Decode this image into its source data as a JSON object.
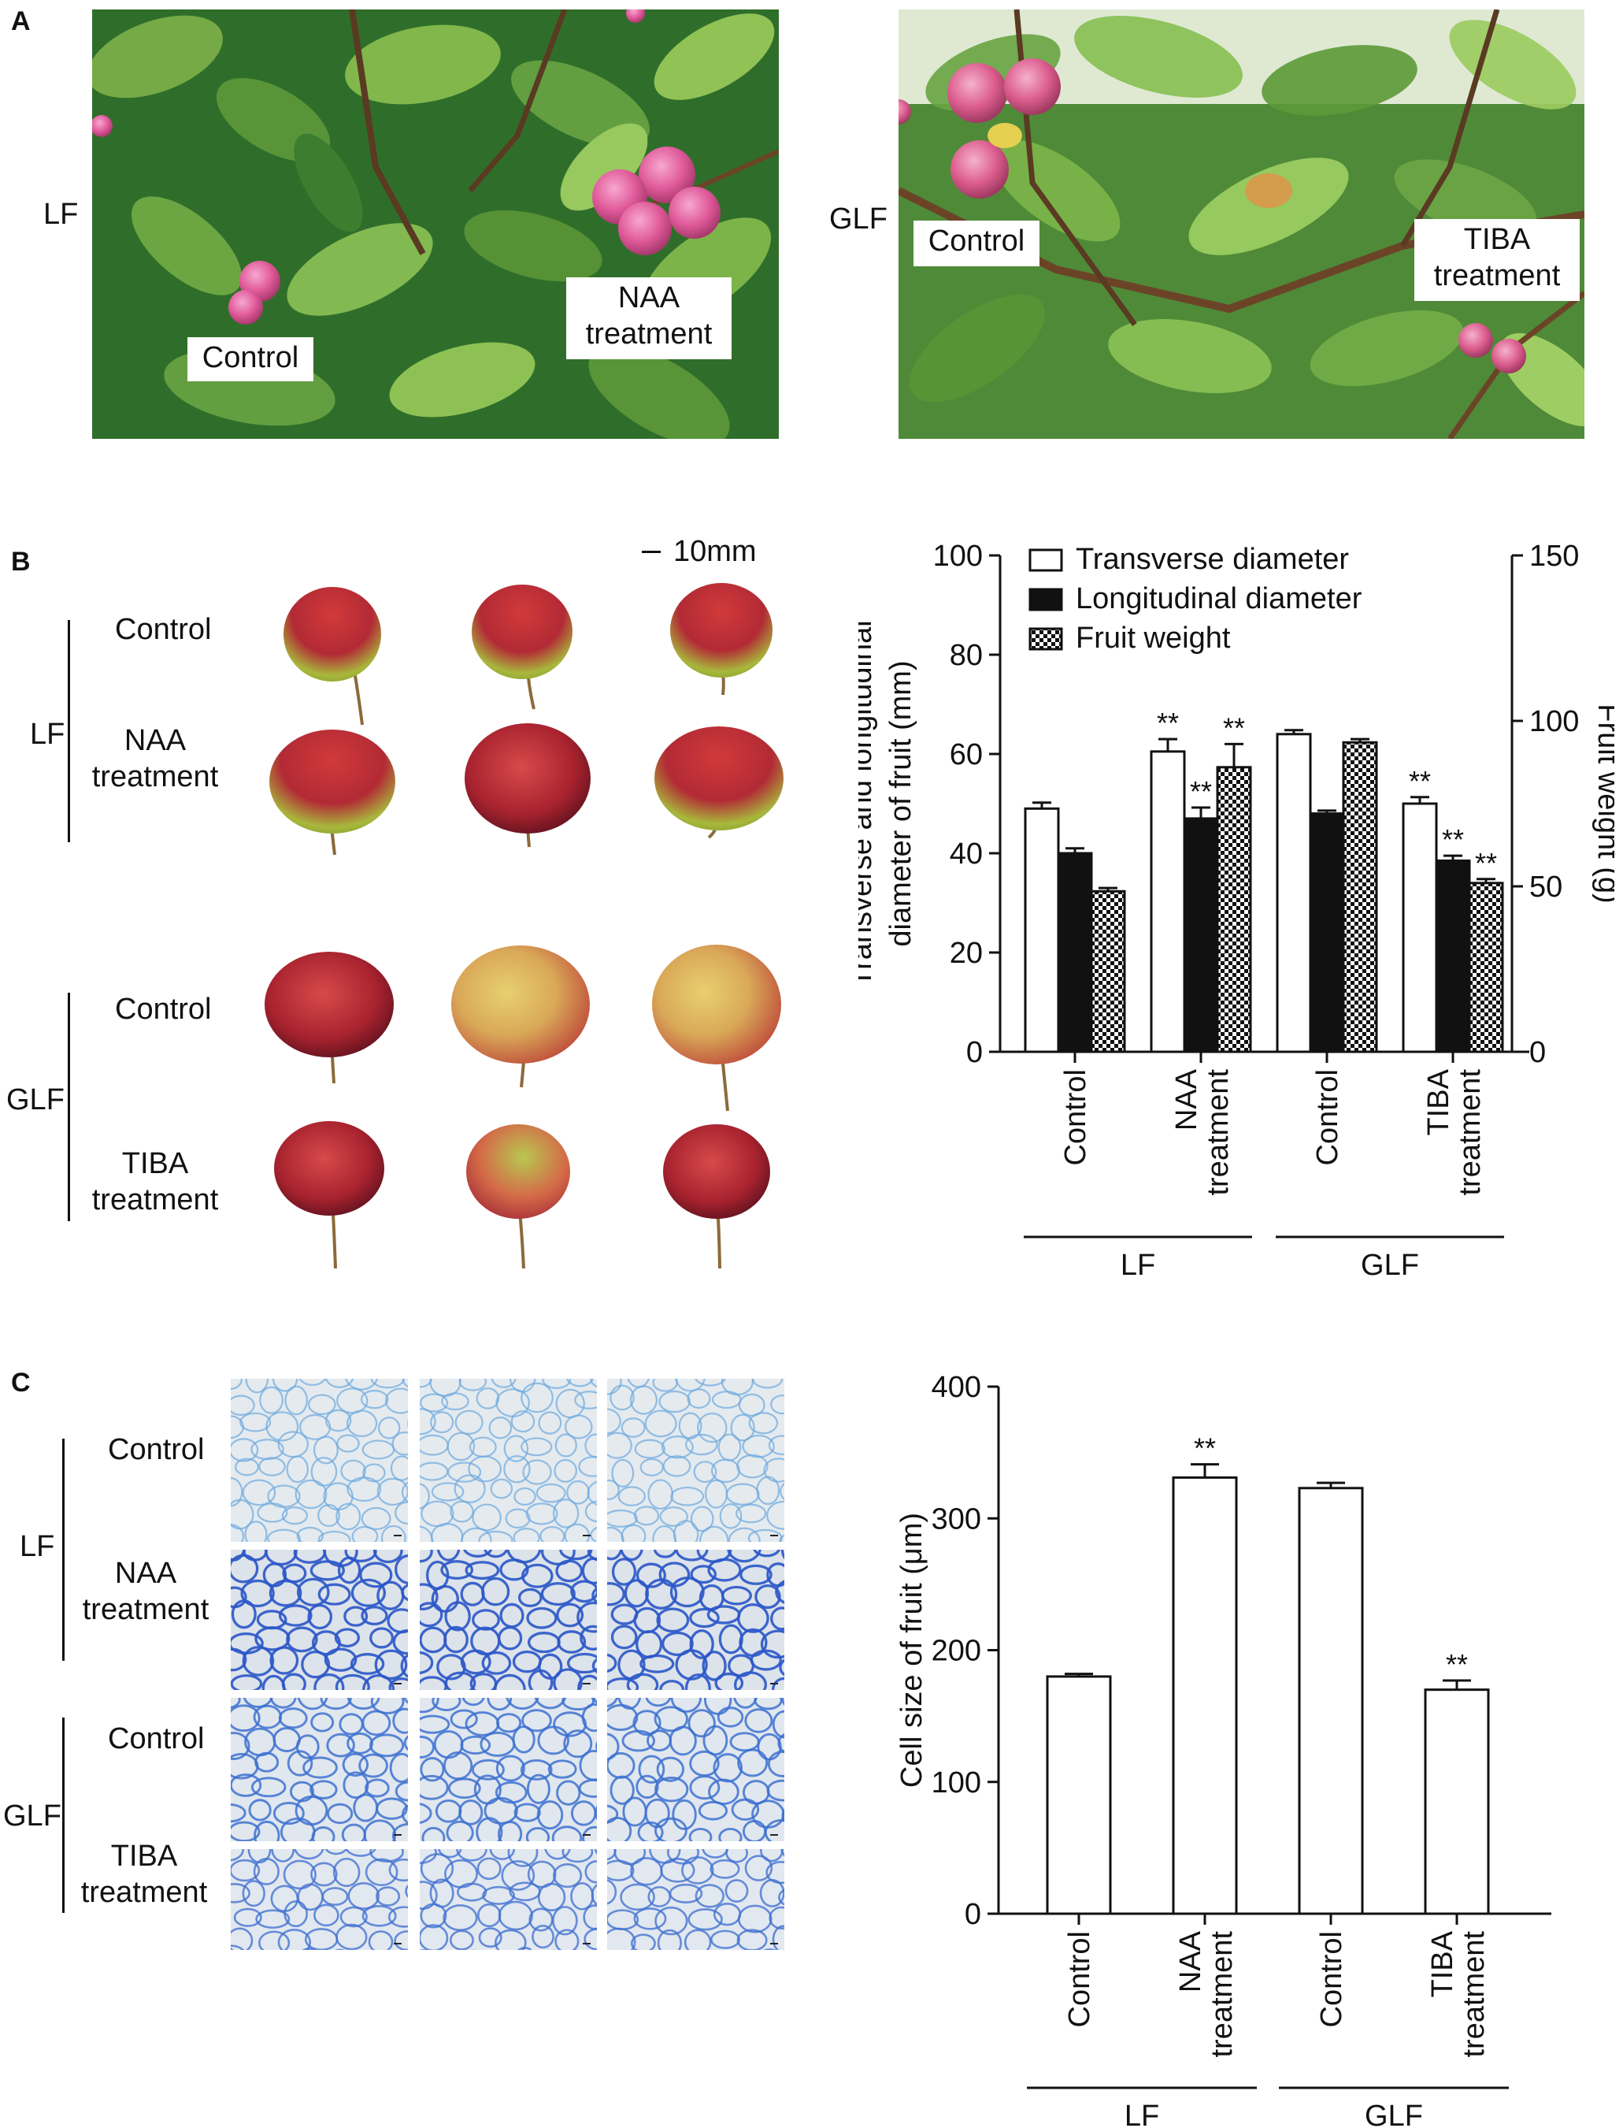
{
  "panels": {
    "a": "A",
    "b": "B",
    "c": "C"
  },
  "panel_a": {
    "left": {
      "side_label": "LF",
      "control_label": "Control",
      "treatment_label": [
        "NAA",
        "treatment"
      ]
    },
    "right": {
      "side_label": "GLF",
      "control_label": "Control",
      "treatment_label": [
        "TIBA",
        "treatment"
      ]
    }
  },
  "panel_b": {
    "scale_bar_label": "10mm",
    "groups": [
      {
        "name": "LF",
        "rows": [
          [
            "Control"
          ],
          [
            "NAA",
            "treatment"
          ]
        ]
      },
      {
        "name": "GLF",
        "rows": [
          [
            "Control"
          ],
          [
            "TIBA",
            "treatment"
          ]
        ]
      }
    ]
  },
  "panel_c": {
    "groups": [
      {
        "name": "LF",
        "rows": [
          [
            "Control"
          ],
          [
            "NAA",
            "treatment"
          ]
        ]
      },
      {
        "name": "GLF",
        "rows": [
          [
            "Control"
          ],
          [
            "TIBA",
            "treatment"
          ]
        ]
      }
    ]
  },
  "colors": {
    "apple_red": "#b22a35",
    "apple_green": "#a8b83c",
    "leaf_dark": "#2f6e2a",
    "leaf_light": "#7fb24a",
    "stain_blue": "#3a6fd0",
    "fruit_pink": "#e05a9a"
  },
  "chart_data": [
    {
      "id": "fruit-size-chart",
      "type": "bar",
      "categories": [
        [
          "Control"
        ],
        [
          "NAA",
          "treatment"
        ],
        [
          "Control"
        ],
        [
          "TIBA",
          "treatment"
        ]
      ],
      "groups": [
        {
          "name": "LF",
          "span": [
            0,
            1
          ]
        },
        {
          "name": "GLF",
          "span": [
            2,
            3
          ]
        }
      ],
      "ylabel": [
        "Transverse and longitudinal",
        "diameter of fruit (mm)"
      ],
      "y2label": "Fruit weight (g)",
      "ylim": [
        0,
        100
      ],
      "yticks": [
        0,
        20,
        40,
        60,
        80,
        100
      ],
      "y2lim": [
        0,
        150
      ],
      "y2ticks": [
        0,
        50,
        100,
        150
      ],
      "legend_position": "top-left",
      "series": [
        {
          "name": "Transverse diameter",
          "axis": "left",
          "fill": "white",
          "values": [
            49,
            60.5,
            64,
            50
          ],
          "errors": [
            1.2,
            2.5,
            0.8,
            1.3
          ],
          "significance": [
            "",
            "**",
            "",
            "**"
          ]
        },
        {
          "name": "Longitudinal diameter",
          "axis": "left",
          "fill": "black",
          "values": [
            40,
            47,
            48,
            38.5
          ],
          "errors": [
            1.0,
            2.2,
            0.6,
            1.0
          ],
          "significance": [
            "",
            "**",
            "",
            "**"
          ]
        },
        {
          "name": "Fruit weight",
          "axis": "right",
          "fill": "checker",
          "values": [
            48.5,
            86,
            93.5,
            51
          ],
          "errors": [
            1.0,
            7.0,
            1.0,
            1.2
          ],
          "significance": [
            "",
            "**",
            "",
            "**"
          ]
        }
      ]
    },
    {
      "id": "cell-size-chart",
      "type": "bar",
      "categories": [
        [
          "Control"
        ],
        [
          "NAA",
          "treatment"
        ],
        [
          "Control"
        ],
        [
          "TIBA",
          "treatment"
        ]
      ],
      "groups": [
        {
          "name": "LF",
          "span": [
            0,
            1
          ]
        },
        {
          "name": "GLF",
          "span": [
            2,
            3
          ]
        }
      ],
      "ylabel": [
        "Cell size of fruit (μm)"
      ],
      "ylim": [
        0,
        400
      ],
      "yticks": [
        0,
        100,
        200,
        300,
        400
      ],
      "series": [
        {
          "name": "",
          "axis": "left",
          "fill": "white",
          "values": [
            180,
            331,
            323,
            170
          ],
          "errors": [
            2,
            10,
            4,
            7
          ],
          "significance": [
            "",
            "**",
            "",
            "**"
          ]
        }
      ]
    }
  ]
}
